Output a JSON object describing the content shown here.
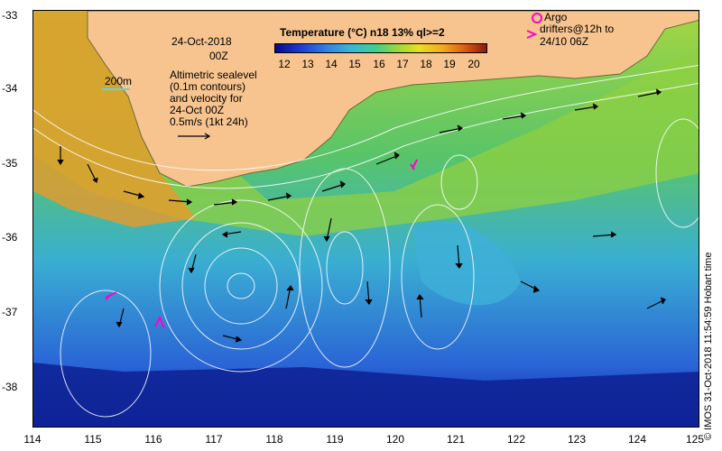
{
  "date": "24-Oct-2018",
  "time": "00Z",
  "scale_label": "200m",
  "legend_text": [
    "Altimetric sealevel",
    "(0.1m contours)",
    "and velocity for",
    "24-Oct 00Z",
    "0.5m/s (1kt 24h)"
  ],
  "colorbar": {
    "title": "Temperature (°C) n18 13% ql>=2",
    "ticks": [
      "12",
      "13",
      "14",
      "15",
      "16",
      "17",
      "18",
      "19",
      "20"
    ]
  },
  "argo_legend": {
    "symbol_label": "Argo",
    "drifter_lines": [
      "drifters@12h to",
      "24/10 06Z"
    ],
    "color": "#ff00cc"
  },
  "axes": {
    "lon_ticks": [
      "114",
      "115",
      "116",
      "117",
      "118",
      "119",
      "120",
      "121",
      "122",
      "123",
      "124",
      "125"
    ],
    "lat_ticks": [
      "-33",
      "-34",
      "-35",
      "-36",
      "-37",
      "-38"
    ]
  },
  "credit": "© IMOS 31-Oct-2018 11:54:59 Hobart time",
  "colors": {
    "land": "#f7c48f",
    "ocean_warm": "#9ad83a",
    "ocean_mid": "#3fc080",
    "ocean_cool": "#3aa0d8",
    "ocean_cold": "#1c3cd2",
    "contour": "#ffffff",
    "arrows": "#000000",
    "drifters": "#ff00cc"
  }
}
